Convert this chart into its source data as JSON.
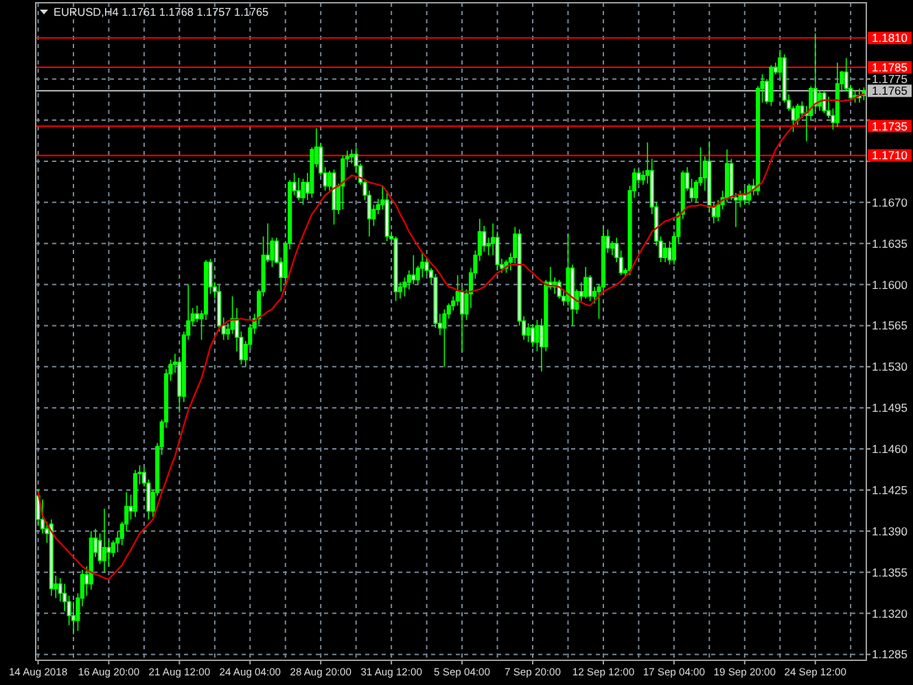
{
  "chart_data": {
    "type": "candlestick",
    "title": "EURUSD,H4 1.1761 1.1768 1.1757 1.1765",
    "categories": [
      "14 Aug 2018",
      null,
      null,
      null,
      null,
      null,
      null,
      null,
      null,
      null,
      null,
      null,
      null,
      null,
      null,
      null,
      "16 Aug 20:00",
      null,
      null,
      null,
      null,
      null,
      null,
      null,
      null,
      null,
      null,
      null,
      null,
      null,
      null,
      null,
      "21 Aug 12:00",
      null,
      null,
      null,
      null,
      null,
      null,
      null,
      null,
      null,
      null,
      null,
      null,
      null,
      null,
      null,
      "24 Aug 04:00",
      null,
      null,
      null,
      null,
      null,
      null,
      null,
      null,
      null,
      null,
      null,
      null,
      null,
      null,
      null,
      "28 Aug 20:00",
      null,
      null,
      null,
      null,
      null,
      null,
      null,
      null,
      null,
      null,
      null,
      null,
      null,
      null,
      null,
      "31 Aug 12:00",
      null,
      null,
      null,
      null,
      null,
      null,
      null,
      null,
      null,
      null,
      null,
      null,
      null,
      null,
      null,
      "5 Sep 04:00",
      null,
      null,
      null,
      null,
      null,
      null,
      null,
      null,
      null,
      null,
      null,
      null,
      null,
      null,
      null,
      "7 Sep 20:00",
      null,
      null,
      null,
      null,
      null,
      null,
      null,
      null,
      null,
      null,
      null,
      null,
      null,
      null,
      null,
      "12 Sep 12:00",
      null,
      null,
      null,
      null,
      null,
      null,
      null,
      null,
      null,
      null,
      null,
      null,
      null,
      null,
      null,
      "17 Sep 04:00",
      null,
      null,
      null,
      null,
      null,
      null,
      null,
      null,
      null,
      null,
      null,
      null,
      null,
      null,
      null,
      "19 Sep 20:00",
      null,
      null,
      null,
      null,
      null,
      null,
      null,
      null,
      null,
      null,
      null,
      null,
      null,
      null,
      null,
      "24 Sep 12:00",
      null,
      null,
      null,
      null,
      null,
      null,
      null,
      null,
      null,
      null,
      null
    ],
    "color": "#00ff00",
    "ohlc": [
      [
        1.142,
        1.1425,
        1.1395,
        1.14
      ],
      [
        1.14,
        1.1417,
        1.1388,
        1.1392
      ],
      [
        1.1392,
        1.1398,
        1.138,
        1.1388
      ],
      [
        1.1396,
        1.14,
        1.1335,
        1.1341
      ],
      [
        1.1341,
        1.1352,
        1.1333,
        1.1345
      ],
      [
        1.1345,
        1.135,
        1.133,
        1.1337
      ],
      [
        1.1337,
        1.1345,
        1.1322,
        1.133
      ],
      [
        1.133,
        1.1335,
        1.131,
        1.1318
      ],
      [
        1.1318,
        1.133,
        1.1302,
        1.1314
      ],
      [
        1.1314,
        1.1337,
        1.1305,
        1.1333
      ],
      [
        1.1333,
        1.1357,
        1.1326,
        1.1353
      ],
      [
        1.1353,
        1.136,
        1.1335,
        1.1345
      ],
      [
        1.1345,
        1.139,
        1.134,
        1.1384
      ],
      [
        1.1384,
        1.1392,
        1.1368,
        1.1372
      ],
      [
        1.1382,
        1.1388,
        1.1362,
        1.1365
      ],
      [
        1.1365,
        1.1409,
        1.1355,
        1.1376
      ],
      [
        1.1376,
        1.1382,
        1.136,
        1.1372
      ],
      [
        1.1372,
        1.1382,
        1.1368,
        1.138
      ],
      [
        1.138,
        1.139,
        1.1372,
        1.1384
      ],
      [
        1.1384,
        1.1398,
        1.1378,
        1.1396
      ],
      [
        1.1396,
        1.1423,
        1.139,
        1.1411
      ],
      [
        1.1411,
        1.1421,
        1.14,
        1.1407
      ],
      [
        1.1407,
        1.1442,
        1.1402,
        1.1439
      ],
      [
        1.1439,
        1.1446,
        1.143,
        1.144
      ],
      [
        1.144,
        1.1444,
        1.1428,
        1.1431
      ],
      [
        1.1431,
        1.1434,
        1.14,
        1.1407
      ],
      [
        1.1407,
        1.1425,
        1.1402,
        1.1423
      ],
      [
        1.1423,
        1.1465,
        1.142,
        1.1462
      ],
      [
        1.1462,
        1.1485,
        1.1455,
        1.1483
      ],
      [
        1.1483,
        1.1528,
        1.1478,
        1.1524
      ],
      [
        1.1524,
        1.1536,
        1.1518,
        1.1532
      ],
      [
        1.1532,
        1.1541,
        1.1525,
        1.1534
      ],
      [
        1.1534,
        1.1538,
        1.1491,
        1.1505
      ],
      [
        1.1505,
        1.156,
        1.15,
        1.1557
      ],
      [
        1.1557,
        1.16,
        1.1553,
        1.1569
      ],
      [
        1.1569,
        1.158,
        1.1565,
        1.1575
      ],
      [
        1.1575,
        1.1582,
        1.1568,
        1.1571
      ],
      [
        1.1571,
        1.1578,
        1.1553,
        1.1575
      ],
      [
        1.1575,
        1.1621,
        1.157,
        1.1619
      ],
      [
        1.1619,
        1.1622,
        1.1592,
        1.1598
      ],
      [
        1.1598,
        1.1602,
        1.1588,
        1.1594
      ],
      [
        1.1594,
        1.16,
        1.156,
        1.1565
      ],
      [
        1.1565,
        1.1572,
        1.1553,
        1.1558
      ],
      [
        1.1558,
        1.1567,
        1.1553,
        1.1562
      ],
      [
        1.1562,
        1.159,
        1.1558,
        1.1571
      ],
      [
        1.1571,
        1.158,
        1.1543,
        1.1555
      ],
      [
        1.1555,
        1.156,
        1.1532,
        1.1536
      ],
      [
        1.1536,
        1.1552,
        1.153,
        1.1549
      ],
      [
        1.1549,
        1.1566,
        1.1545,
        1.1563
      ],
      [
        1.1563,
        1.1575,
        1.1558,
        1.1571
      ],
      [
        1.1571,
        1.1596,
        1.1566,
        1.1594
      ],
      [
        1.1594,
        1.1641,
        1.159,
        1.1625
      ],
      [
        1.1625,
        1.1652,
        1.1619,
        1.1621
      ],
      [
        1.1621,
        1.164,
        1.1615,
        1.1637
      ],
      [
        1.1637,
        1.164,
        1.1618,
        1.1619
      ],
      [
        1.1619,
        1.1623,
        1.1594,
        1.1606
      ],
      [
        1.1606,
        1.1637,
        1.16,
        1.1635
      ],
      [
        1.1635,
        1.1689,
        1.163,
        1.1687
      ],
      [
        1.1687,
        1.1695,
        1.1676,
        1.168
      ],
      [
        1.168,
        1.1691,
        1.1672,
        1.1674
      ],
      [
        1.1674,
        1.169,
        1.1668,
        1.1687
      ],
      [
        1.1687,
        1.1695,
        1.1672,
        1.1678
      ],
      [
        1.1678,
        1.1717,
        1.1674,
        1.1715
      ],
      [
        1.1703,
        1.1733,
        1.17,
        1.1717
      ],
      [
        1.1717,
        1.172,
        1.1693,
        1.1695
      ],
      [
        1.1695,
        1.17,
        1.168,
        1.1684
      ],
      [
        1.1684,
        1.1697,
        1.168,
        1.1695
      ],
      [
        1.1695,
        1.1698,
        1.1651,
        1.1664
      ],
      [
        1.1664,
        1.1686,
        1.166,
        1.1684
      ],
      [
        1.1684,
        1.171,
        1.1664,
        1.1707
      ],
      [
        1.1707,
        1.1714,
        1.17,
        1.1709
      ],
      [
        1.1709,
        1.1715,
        1.1703,
        1.1711
      ],
      [
        1.1711,
        1.1717,
        1.1695,
        1.1701
      ],
      [
        1.1701,
        1.1703,
        1.1685,
        1.1687
      ],
      [
        1.1687,
        1.169,
        1.1672,
        1.1676
      ],
      [
        1.1676,
        1.168,
        1.1641,
        1.1656
      ],
      [
        1.1656,
        1.1668,
        1.165,
        1.1664
      ],
      [
        1.1664,
        1.1673,
        1.166,
        1.1668
      ],
      [
        1.1668,
        1.1684,
        1.1664,
        1.1672
      ],
      [
        1.1672,
        1.168,
        1.1637,
        1.1641
      ],
      [
        1.1641,
        1.1645,
        1.1635,
        1.1639
      ],
      [
        1.1639,
        1.1641,
        1.1586,
        1.1594
      ],
      [
        1.1594,
        1.1602,
        1.1588,
        1.1598
      ],
      [
        1.1598,
        1.1606,
        1.159,
        1.1602
      ],
      [
        1.1602,
        1.1612,
        1.1596,
        1.1608
      ],
      [
        1.1608,
        1.1625,
        1.16,
        1.1604
      ],
      [
        1.1604,
        1.1616,
        1.16,
        1.1614
      ],
      [
        1.1614,
        1.1627,
        1.1606,
        1.1619
      ],
      [
        1.1619,
        1.1623,
        1.1608,
        1.1612
      ],
      [
        1.1612,
        1.1614,
        1.16,
        1.1606
      ],
      [
        1.1606,
        1.1609,
        1.1563,
        1.1567
      ],
      [
        1.1567,
        1.1575,
        1.1557,
        1.1563
      ],
      [
        1.1563,
        1.1579,
        1.153,
        1.1575
      ],
      [
        1.1575,
        1.1584,
        1.1571,
        1.1582
      ],
      [
        1.1582,
        1.159,
        1.1578,
        1.1586
      ],
      [
        1.1586,
        1.1608,
        1.1582,
        1.1594
      ],
      [
        1.1594,
        1.1598,
        1.1543,
        1.1575
      ],
      [
        1.1575,
        1.1596,
        1.157,
        1.1592
      ],
      [
        1.1592,
        1.1614,
        1.158,
        1.161
      ],
      [
        1.161,
        1.1629,
        1.1605,
        1.1625
      ],
      [
        1.1625,
        1.1656,
        1.162,
        1.1645
      ],
      [
        1.1645,
        1.165,
        1.1628,
        1.1633
      ],
      [
        1.1633,
        1.164,
        1.1625,
        1.1635
      ],
      [
        1.1635,
        1.1652,
        1.1625,
        1.164
      ],
      [
        1.164,
        1.1645,
        1.1612,
        1.1617
      ],
      [
        1.1617,
        1.1622,
        1.161,
        1.1614
      ],
      [
        1.1614,
        1.1621,
        1.161,
        1.1619
      ],
      [
        1.1619,
        1.1627,
        1.1612,
        1.1623
      ],
      [
        1.1623,
        1.1649,
        1.1618,
        1.1643
      ],
      [
        1.1643,
        1.1647,
        1.1565,
        1.1569
      ],
      [
        1.1569,
        1.1573,
        1.1553,
        1.1557
      ],
      [
        1.1557,
        1.1567,
        1.1551,
        1.1563
      ],
      [
        1.1563,
        1.1566,
        1.1547,
        1.1551
      ],
      [
        1.1551,
        1.157,
        1.1543,
        1.1565
      ],
      [
        1.1565,
        1.1571,
        1.1526,
        1.1547
      ],
      [
        1.1547,
        1.1604,
        1.1543,
        1.1602
      ],
      [
        1.1602,
        1.1615,
        1.1596,
        1.1598
      ],
      [
        1.1598,
        1.1606,
        1.1592,
        1.1602
      ],
      [
        1.1602,
        1.1604,
        1.1588,
        1.159
      ],
      [
        1.159,
        1.1596,
        1.1582,
        1.1586
      ],
      [
        1.1586,
        1.1643,
        1.1582,
        1.1614
      ],
      [
        1.1614,
        1.1617,
        1.1565,
        1.1579
      ],
      [
        1.1579,
        1.1596,
        1.1575,
        1.1594
      ],
      [
        1.1594,
        1.1602,
        1.1586,
        1.159
      ],
      [
        1.159,
        1.1615,
        1.1588,
        1.1606
      ],
      [
        1.1606,
        1.1608,
        1.1586,
        1.159
      ],
      [
        1.159,
        1.1598,
        1.1584,
        1.1594
      ],
      [
        1.1594,
        1.16,
        1.1571,
        1.1598
      ],
      [
        1.1598,
        1.1649,
        1.1594,
        1.1641
      ],
      [
        1.1641,
        1.1647,
        1.1627,
        1.1631
      ],
      [
        1.1631,
        1.1637,
        1.1625,
        1.1635
      ],
      [
        1.1635,
        1.164,
        1.1619,
        1.1623
      ],
      [
        1.1623,
        1.1629,
        1.1608,
        1.161
      ],
      [
        1.161,
        1.1614,
        1.1606,
        1.1612
      ],
      [
        1.1612,
        1.1684,
        1.1608,
        1.168
      ],
      [
        1.168,
        1.1699,
        1.1674,
        1.1695
      ],
      [
        1.1695,
        1.1698,
        1.1686,
        1.1689
      ],
      [
        1.1689,
        1.1697,
        1.1685,
        1.1693
      ],
      [
        1.1693,
        1.1721,
        1.1686,
        1.1697
      ],
      [
        1.1697,
        1.1707,
        1.166,
        1.1666
      ],
      [
        1.1666,
        1.167,
        1.1633,
        1.1637
      ],
      [
        1.1637,
        1.1641,
        1.1619,
        1.1623
      ],
      [
        1.1623,
        1.1635,
        1.1619,
        1.1631
      ],
      [
        1.1631,
        1.1637,
        1.1617,
        1.1621
      ],
      [
        1.1621,
        1.1645,
        1.1617,
        1.1641
      ],
      [
        1.1641,
        1.1662,
        1.1635,
        1.166
      ],
      [
        1.166,
        1.1697,
        1.1656,
        1.1695
      ],
      [
        1.1695,
        1.17,
        1.168,
        1.1682
      ],
      [
        1.1682,
        1.169,
        1.167,
        1.1674
      ],
      [
        1.1674,
        1.1689,
        1.167,
        1.1687
      ],
      [
        1.1687,
        1.1717,
        1.1684,
        1.1691
      ],
      [
        1.1691,
        1.1709,
        1.168,
        1.1705
      ],
      [
        1.1705,
        1.1722,
        1.1662,
        1.1666
      ],
      [
        1.1666,
        1.167,
        1.1652,
        1.1658
      ],
      [
        1.1658,
        1.1672,
        1.1654,
        1.1668
      ],
      [
        1.1668,
        1.168,
        1.1664,
        1.1674
      ],
      [
        1.1674,
        1.1715,
        1.167,
        1.1703
      ],
      [
        1.1703,
        1.1707,
        1.1672,
        1.1674
      ],
      [
        1.1674,
        1.1678,
        1.1649,
        1.1672
      ],
      [
        1.1672,
        1.168,
        1.1666,
        1.1676
      ],
      [
        1.1676,
        1.1682,
        1.1668,
        1.1672
      ],
      [
        1.1672,
        1.1686,
        1.1668,
        1.1684
      ],
      [
        1.1684,
        1.169,
        1.1676,
        1.168
      ],
      [
        1.168,
        1.1769,
        1.1676,
        1.1767
      ],
      [
        1.1767,
        1.1779,
        1.1755,
        1.1773
      ],
      [
        1.1773,
        1.1775,
        1.1754,
        1.1756
      ],
      [
        1.1756,
        1.1787,
        1.1752,
        1.1785
      ],
      [
        1.1785,
        1.1789,
        1.1779,
        1.1781
      ],
      [
        1.1781,
        1.18,
        1.1776,
        1.1793
      ],
      [
        1.1793,
        1.1796,
        1.1755,
        1.1757
      ],
      [
        1.1757,
        1.1762,
        1.1748,
        1.175
      ],
      [
        1.175,
        1.1752,
        1.173,
        1.174
      ],
      [
        1.174,
        1.1754,
        1.1736,
        1.1752
      ],
      [
        1.1752,
        1.1756,
        1.1742,
        1.1746
      ],
      [
        1.1746,
        1.1752,
        1.1722,
        1.1744
      ],
      [
        1.1744,
        1.1769,
        1.174,
        1.1767
      ],
      [
        1.1767,
        1.1814,
        1.1748,
        1.1752
      ],
      [
        1.1752,
        1.1765,
        1.1748,
        1.1763
      ],
      [
        1.1763,
        1.1765,
        1.1746,
        1.1748
      ],
      [
        1.1748,
        1.176,
        1.1742,
        1.1744
      ],
      [
        1.1744,
        1.175,
        1.1732,
        1.1738
      ],
      [
        1.1738,
        1.1789,
        1.1734,
        1.1771
      ],
      [
        1.1771,
        1.1782,
        1.1764,
        1.1781
      ],
      [
        1.1781,
        1.1793,
        1.1765,
        1.1767
      ],
      [
        1.1767,
        1.177,
        1.1757,
        1.1759
      ],
      [
        1.1759,
        1.1765,
        1.1755,
        1.1761
      ],
      [
        1.1761,
        1.1767,
        1.1755,
        1.1759
      ],
      [
        1.1761,
        1.1768,
        1.1757,
        1.1765
      ]
    ],
    "series": [
      {
        "type": "line",
        "color": "#d40000",
        "values": [
          1.1423,
          1.1403,
          1.1396,
          1.139,
          1.1384,
          1.138,
          1.1376,
          1.1372,
          1.1368,
          1.1364,
          1.136,
          1.1357,
          1.1355,
          1.1353,
          1.1352,
          1.135,
          1.1349,
          1.1353,
          1.1357,
          1.1361,
          1.1368,
          1.1374,
          1.1381,
          1.1388,
          1.1392,
          1.1396,
          1.14,
          1.1411,
          1.1423,
          1.1433,
          1.1444,
          1.1454,
          1.1467,
          1.148,
          1.1493,
          1.1502,
          1.1511,
          1.152,
          1.1533,
          1.1547,
          1.1555,
          1.1563,
          1.1566,
          1.1569,
          1.157,
          1.157,
          1.1571,
          1.157,
          1.157,
          1.1569,
          1.1572,
          1.1574,
          1.1577,
          1.1579,
          1.1584,
          1.1588,
          1.1599,
          1.161,
          1.1622,
          1.1633,
          1.1642,
          1.1651,
          1.166,
          1.1665,
          1.1671,
          1.1676,
          1.1679,
          1.1682,
          1.1684,
          1.1687,
          1.169,
          1.1693,
          1.1692,
          1.1691,
          1.1689,
          1.1687,
          1.1686,
          1.1685,
          1.1684,
          1.1679,
          1.1673,
          1.1668,
          1.166,
          1.1653,
          1.1645,
          1.1639,
          1.1633,
          1.1627,
          1.1623,
          1.1618,
          1.1614,
          1.1609,
          1.1603,
          1.1598,
          1.1597,
          1.1595,
          1.1594,
          1.1594,
          1.1594,
          1.1595,
          1.1596,
          1.1598,
          1.1602,
          1.1606,
          1.161,
          1.1612,
          1.1615,
          1.1617,
          1.1617,
          1.1617,
          1.1617,
          1.1613,
          1.161,
          1.1606,
          1.1603,
          1.16,
          1.1599,
          1.1599,
          1.1598,
          1.1595,
          1.1592,
          1.1589,
          1.1586,
          1.1585,
          1.1583,
          1.1582,
          1.1586,
          1.159,
          1.1594,
          1.1596,
          1.1598,
          1.16,
          1.1603,
          1.1607,
          1.161,
          1.1618,
          1.1625,
          1.1632,
          1.1638,
          1.1645,
          1.1648,
          1.1651,
          1.1654,
          1.1655,
          1.1657,
          1.1658,
          1.1662,
          1.1666,
          1.1667,
          1.1667,
          1.1668,
          1.1667,
          1.1667,
          1.1666,
          1.1669,
          1.1672,
          1.1673,
          1.1675,
          1.1676,
          1.1677,
          1.1677,
          1.1678,
          1.1681,
          1.1684,
          1.1687,
          1.1696,
          1.1706,
          1.1715,
          1.1721,
          1.1726,
          1.1731,
          1.1735,
          1.174,
          1.1743,
          1.1746,
          1.175,
          1.1754,
          1.1756,
          1.1757,
          1.1757,
          1.1757,
          1.1757,
          1.1756,
          1.1757,
          1.1757,
          1.1759,
          1.1761,
          1.1762
        ]
      }
    ],
    "ylim": [
      1.128,
      1.184
    ],
    "yticks": [
      1.1285,
      {
        "value": 1.132,
        "label": "1.1320"
      },
      1.1355,
      {
        "value": 1.139,
        "label": "1.1390"
      },
      1.1425,
      {
        "value": 1.146,
        "label": "1.1460"
      },
      1.1495,
      {
        "value": 1.153,
        "label": "1.1530"
      },
      1.1565,
      {
        "value": 1.16,
        "label": "1.1600"
      },
      1.1635,
      {
        "value": 1.167,
        "label": "1.1670"
      },
      {
        "value": 1.1705,
        "label": null
      },
      {
        "value": 1.174,
        "label": null
      },
      1.1775
    ],
    "grid": true,
    "ref_lines": [
      {
        "axis": "y",
        "value": 1.181,
        "label": "1.1810",
        "color": "#ff0000"
      },
      {
        "axis": "y",
        "value": 1.1785,
        "label": "1.1785",
        "color": "#ff0000"
      },
      {
        "axis": "y",
        "value": 1.1735,
        "label": "1.1735",
        "color": "#ff0000"
      },
      {
        "axis": "y",
        "value": 1.171,
        "label": "1.1710",
        "color": "#ff0000"
      },
      {
        "axis": "y",
        "value": 1.1765,
        "label": "1.1765",
        "color": "#c0c0c0"
      }
    ]
  }
}
